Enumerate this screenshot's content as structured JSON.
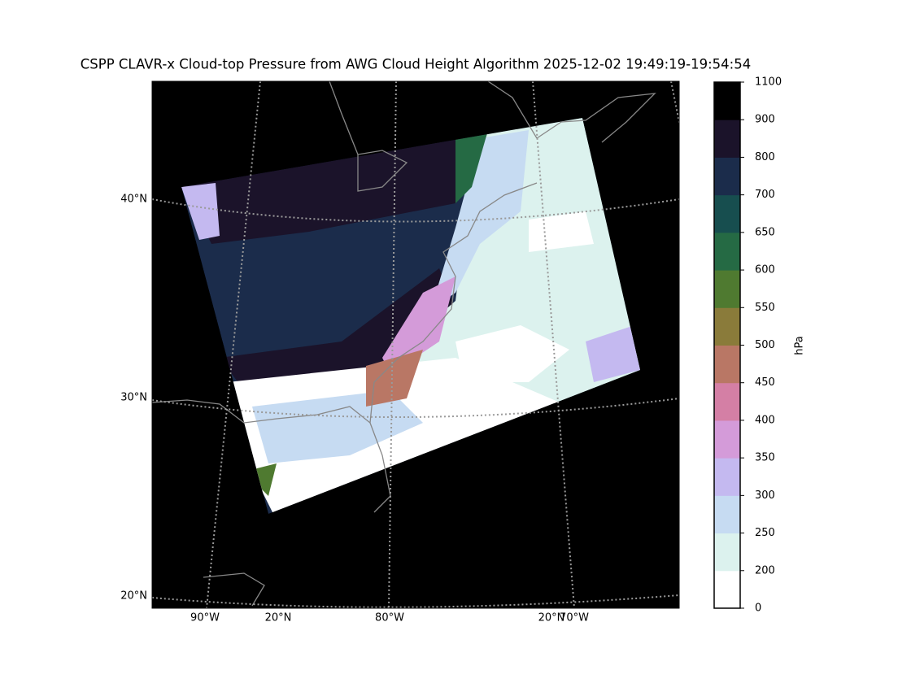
{
  "title": "CSPP CLAVR-x Cloud-top Pressure from AWG Cloud Height Algorithm 2025-12-02 19:49:19-19:54:54",
  "lat_labels": [
    "40°N",
    "30°N",
    "20°N"
  ],
  "lon_labels": [
    "90°W",
    "20°N",
    "80°W",
    "20°N",
    "70°W"
  ],
  "colorbar": {
    "label": "hPa",
    "boundaries": [
      0,
      200,
      250,
      300,
      350,
      400,
      450,
      500,
      550,
      600,
      650,
      700,
      800,
      900,
      1100
    ],
    "colors": [
      "#ffffff",
      "#dcf2ee",
      "#c6dbf2",
      "#c4b9f0",
      "#d49bd9",
      "#d47fa5",
      "#b97765",
      "#8a7b3a",
      "#4f7a30",
      "#256a44",
      "#174e4f",
      "#1b2c4b",
      "#1b132a",
      "#000000"
    ]
  }
}
